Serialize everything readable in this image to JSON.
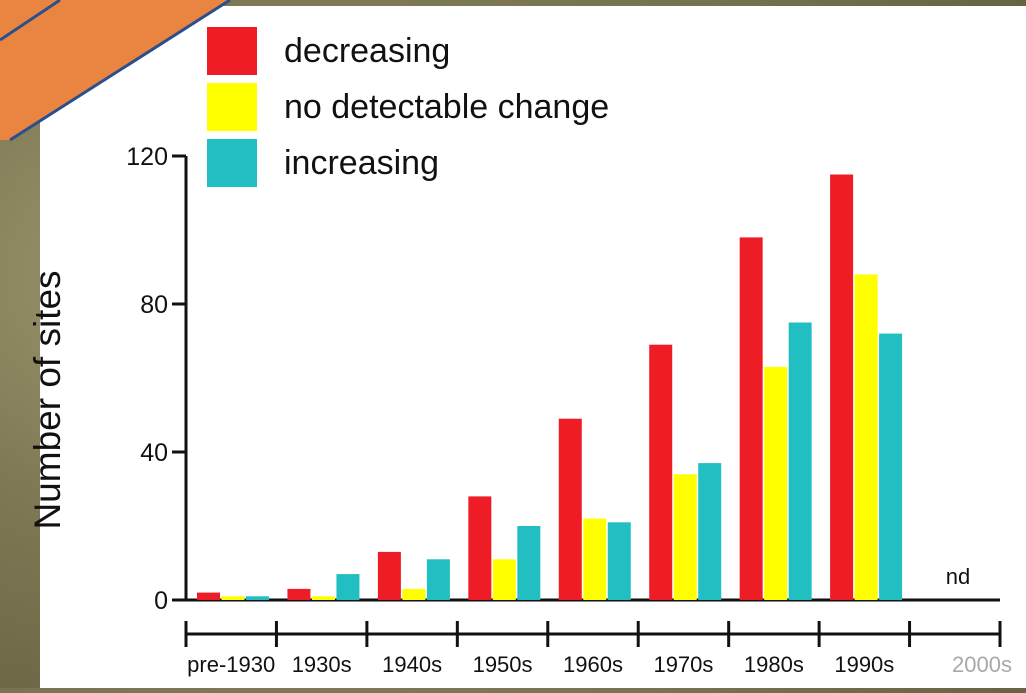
{
  "chart_data": {
    "type": "bar",
    "categories": [
      "pre-1930",
      "1930s",
      "1940s",
      "1950s",
      "1960s",
      "1970s",
      "1980s",
      "1990s",
      "2000s"
    ],
    "series": [
      {
        "name": "decreasing",
        "color": "#ee1c25",
        "values": [
          2,
          3,
          13,
          28,
          49,
          69,
          98,
          115,
          null
        ]
      },
      {
        "name": "no detectable change",
        "color": "#ffff00",
        "values": [
          1,
          1,
          3,
          11,
          22,
          34,
          63,
          88,
          null
        ]
      },
      {
        "name": "increasing",
        "color": "#21bfc2",
        "values": [
          1,
          7,
          11,
          20,
          21,
          37,
          75,
          72,
          null
        ]
      }
    ],
    "ylabel": "Number of sites",
    "xlabel": "",
    "ylim": [
      0,
      120
    ],
    "yticks": [
      0,
      40,
      80,
      120
    ],
    "annotation": "nd",
    "grid": false,
    "legend_position": "top-left"
  }
}
